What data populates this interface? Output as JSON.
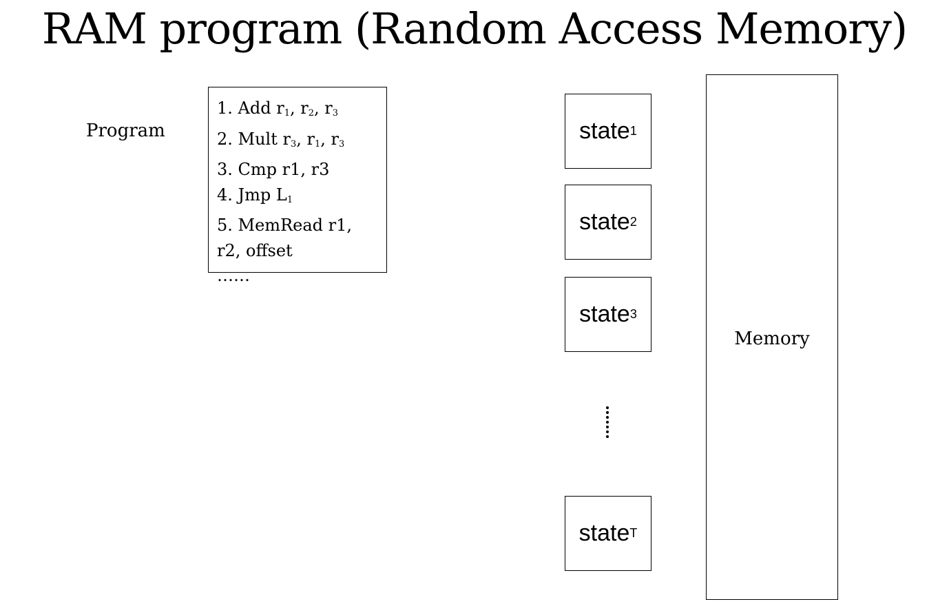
{
  "title": "RAM program (Random Access Memory)",
  "program": {
    "label": "Program",
    "lines": [
      {
        "text": "1. Add r",
        "parts": [
          "1. Add r",
          "1",
          ", r",
          "2",
          ", r",
          "3"
        ]
      },
      {
        "text": "2. Mult r",
        "parts": [
          "2. Mult r",
          "3",
          ", r",
          "1",
          ", r",
          "3"
        ]
      },
      {
        "text": "3. Cmp r1, r3",
        "parts": [
          "3. Cmp r1, r3"
        ]
      },
      {
        "text": "4. Jmp L",
        "parts": [
          "4. Jmp L",
          "1"
        ]
      },
      {
        "text": "5. MemRead r1,",
        "parts": [
          "5. MemRead r1,"
        ]
      },
      {
        "text": "r2, offset",
        "parts": [
          "r2, offset"
        ]
      },
      {
        "text": "……",
        "parts": [
          "……"
        ]
      }
    ]
  },
  "states": [
    {
      "base": "state",
      "sub": "1"
    },
    {
      "base": "state",
      "sub": "2"
    },
    {
      "base": "state",
      "sub": "3"
    },
    {
      "base": "state",
      "sub": "T"
    }
  ],
  "memory": {
    "label": "Memory"
  }
}
